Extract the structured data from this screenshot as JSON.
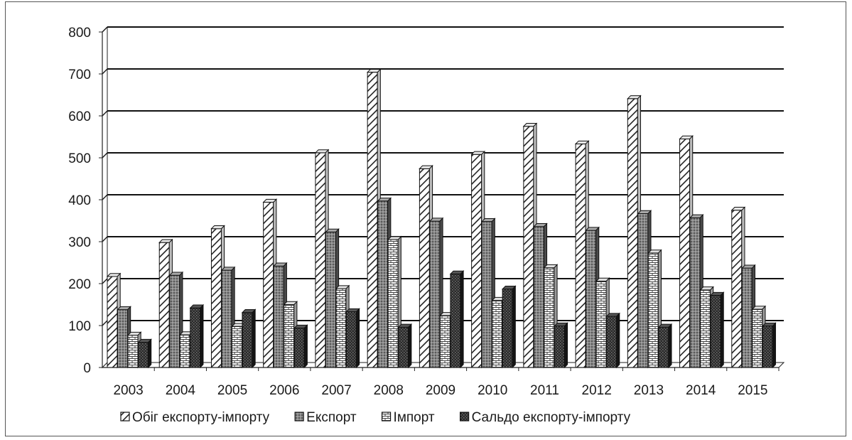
{
  "chart_data": {
    "type": "bar",
    "title": "",
    "xlabel": "",
    "ylabel": "",
    "ylim": [
      0,
      800
    ],
    "yticks": [
      "0",
      "100",
      "200",
      "300",
      "400",
      "500",
      "600",
      "700",
      "800"
    ],
    "grid": true,
    "legend_position": "bottom",
    "categories": [
      "2003",
      "2004",
      "2005",
      "2006",
      "2007",
      "2008",
      "2009",
      "2010",
      "2011",
      "2012",
      "2013",
      "2014",
      "2015"
    ],
    "series": [
      {
        "name": "Обіг експорту-імпорту",
        "pattern": "hatch",
        "values": [
          217,
          298,
          331,
          394,
          512,
          704,
          474,
          508,
          575,
          533,
          641,
          545,
          375
        ]
      },
      {
        "name": "Експорт",
        "pattern": "dots",
        "values": [
          138,
          220,
          232,
          242,
          323,
          397,
          349,
          348,
          336,
          327,
          367,
          357,
          237
        ]
      },
      {
        "name": "Імпорт",
        "pattern": "brick",
        "values": [
          77,
          78,
          98,
          150,
          188,
          305,
          124,
          160,
          238,
          206,
          273,
          185,
          139
        ]
      },
      {
        "name": "Сальдо експорту-імпорту",
        "pattern": "dark",
        "values": [
          60,
          142,
          131,
          94,
          133,
          96,
          223,
          187,
          99,
          122,
          96,
          172,
          99
        ]
      }
    ]
  }
}
